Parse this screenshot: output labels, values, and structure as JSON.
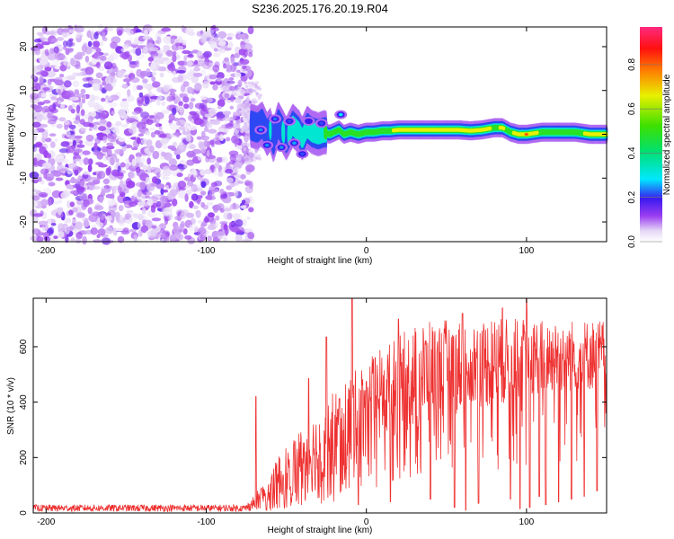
{
  "title": "S236.2025.176.20.19.R04",
  "colorbar": {
    "label": "Normalized spectral amplitude",
    "ticks": [
      "0.0",
      "0.2",
      "0.4",
      "0.6",
      "0.8"
    ],
    "tick_values": [
      0.0,
      0.2,
      0.4,
      0.6,
      0.8
    ],
    "range": [
      0,
      0.97
    ],
    "colormap": "rainbow (white-violet-blue-cyan-green-yellow-red-pink)"
  },
  "chart_data": [
    {
      "type": "heatmap",
      "title": "S236.2025.176.20.19.R04",
      "xlabel": "Height of straight line (km)",
      "ylabel": "Frequency (Hz)",
      "xlim": [
        -208,
        150
      ],
      "ylim": [
        -24.5,
        24.5
      ],
      "xticks": [
        -200,
        -100,
        0,
        100
      ],
      "yticks": [
        20,
        10,
        0,
        -10,
        -20
      ],
      "grid": false,
      "noise_region": {
        "x": [
          -208,
          -72
        ],
        "y": [
          -24.5,
          24.5
        ],
        "amplitude": [
          0.02,
          0.12
        ]
      },
      "ridge": [
        [
          -72,
          2.0,
          0.3
        ],
        [
          -68,
          1.5,
          0.28
        ],
        [
          -65,
          2.5,
          0.32
        ],
        [
          -62,
          0.0,
          0.3
        ],
        [
          -60,
          1.0,
          0.34
        ],
        [
          -58,
          -1.5,
          0.28
        ],
        [
          -55,
          2.5,
          0.3
        ],
        [
          -52,
          0.5,
          0.34
        ],
        [
          -50,
          -1.0,
          0.3
        ],
        [
          -46,
          2.0,
          0.4
        ],
        [
          -42,
          0.5,
          0.36
        ],
        [
          -40,
          -1.0,
          0.38
        ],
        [
          -37,
          1.5,
          0.4
        ],
        [
          -34,
          0.5,
          0.42
        ],
        [
          -30,
          0.0,
          0.45
        ],
        [
          -26,
          0.5,
          0.5
        ],
        [
          -23,
          0.0,
          0.55
        ],
        [
          -20,
          0.5,
          0.52
        ],
        [
          -17,
          1.0,
          0.5
        ],
        [
          -14,
          0.0,
          0.58
        ],
        [
          -10,
          0.5,
          0.6
        ],
        [
          -5,
          0.0,
          0.62
        ],
        [
          0,
          0.5,
          0.62
        ],
        [
          5,
          0.5,
          0.65
        ],
        [
          10,
          0.8,
          0.62
        ],
        [
          15,
          0.8,
          0.64
        ],
        [
          20,
          1.0,
          0.8
        ],
        [
          30,
          1.0,
          0.82
        ],
        [
          40,
          1.0,
          0.82
        ],
        [
          50,
          1.0,
          0.8
        ],
        [
          58,
          1.0,
          0.72
        ],
        [
          65,
          0.8,
          0.7
        ],
        [
          72,
          1.0,
          0.75
        ],
        [
          80,
          1.5,
          0.65
        ],
        [
          85,
          1.5,
          0.7
        ],
        [
          90,
          0.5,
          0.62
        ],
        [
          95,
          0.0,
          0.8
        ],
        [
          100,
          0.0,
          0.85
        ],
        [
          110,
          0.5,
          0.6
        ],
        [
          120,
          0.5,
          0.62
        ],
        [
          130,
          0.5,
          0.58
        ],
        [
          140,
          0.0,
          0.75
        ],
        [
          150,
          0.0,
          0.75
        ]
      ],
      "blobs": [
        [
          -66,
          1.0,
          0.25
        ],
        [
          -62,
          -2.5,
          0.25
        ],
        [
          -57,
          3.5,
          0.24
        ],
        [
          -53,
          -3.0,
          0.25
        ],
        [
          -48,
          3.0,
          0.22
        ],
        [
          -45,
          -2.0,
          0.26
        ],
        [
          -40,
          -4.5,
          0.22
        ],
        [
          -36,
          3.0,
          0.2
        ],
        [
          -16,
          4.5,
          0.3
        ],
        [
          -28,
          2.5,
          0.22
        ]
      ]
    },
    {
      "type": "line",
      "xlabel": "Height of straight line (km)",
      "ylabel": "SNR (10 * v/v)",
      "xlim": [
        -208,
        150
      ],
      "ylim": [
        0,
        775
      ],
      "xticks": [
        -200,
        -100,
        0,
        100
      ],
      "yticks": [
        0,
        200,
        400,
        600
      ],
      "grid": false,
      "series": [
        {
          "color": "#ee3030",
          "envelope": {
            "x": [
              -208,
              -75,
              -68,
              -60,
              -50,
              -40,
              -30,
              -20,
              -10,
              0,
              10,
              20,
              30,
              40,
              50,
              60,
              70,
              80,
              90,
              100,
              110,
              120,
              130,
              140,
              150
            ],
            "low": [
              5,
              5,
              15,
              20,
              40,
              60,
              80,
              100,
              150,
              200,
              250,
              280,
              300,
              320,
              350,
              360,
              380,
              380,
              400,
              420,
              430,
              430,
              440,
              440,
              450
            ],
            "high": [
              30,
              30,
              80,
              150,
              250,
              320,
              380,
              450,
              500,
              550,
              600,
              640,
              680,
              690,
              700,
              700,
              700,
              710,
              700,
              710,
              700,
              700,
              700,
              700,
              700
            ]
          },
          "spikes": [
            [
              -9,
              775
            ],
            [
              -25,
              635
            ],
            [
              -36,
              485
            ],
            [
              -69,
              420
            ],
            [
              0,
              475
            ],
            [
              100,
              775
            ],
            [
              85,
              740
            ],
            [
              20,
              700
            ],
            [
              60,
              720
            ]
          ],
          "dropouts": [
            [
              -5,
              30
            ],
            [
              15,
              40
            ],
            [
              40,
              50
            ],
            [
              55,
              20
            ],
            [
              62,
              10
            ],
            [
              70,
              35
            ],
            [
              85,
              20
            ],
            [
              90,
              50
            ],
            [
              96,
              15
            ],
            [
              102,
              20
            ],
            [
              108,
              60
            ],
            [
              112,
              30
            ],
            [
              120,
              40
            ],
            [
              128,
              50
            ],
            [
              136,
              60
            ],
            [
              144,
              80
            ]
          ],
          "samples": 1500
        }
      ]
    }
  ]
}
